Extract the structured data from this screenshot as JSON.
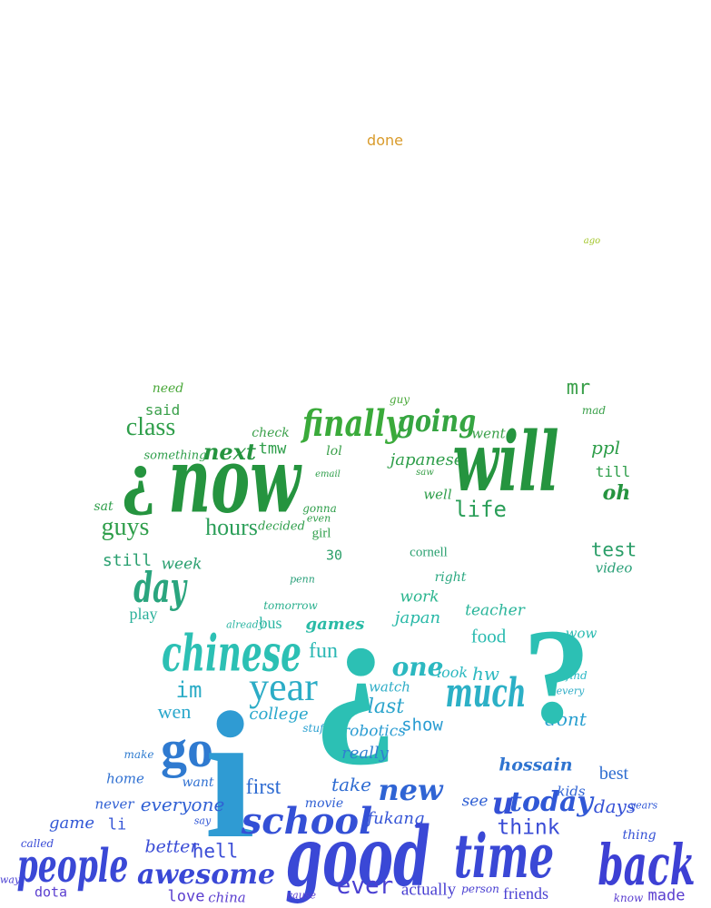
{
  "colors": {
    "orange": "#d99b2b",
    "lime": "#a3c62a",
    "green": "#2e9e4a",
    "green_dark": "#25943f",
    "teal_green": "#2aa58a",
    "teal": "#2cc0b4",
    "sky": "#2e9bd3",
    "blue": "#2f74d0",
    "indigo": "#3a48d6",
    "violet": "#5b3fd0"
  },
  "words": [
    "done",
    "ago",
    "need",
    "mr",
    "said",
    "guy",
    "mad",
    "class",
    "check",
    "finally",
    "going",
    "went",
    "ppl",
    "something",
    "next",
    "tmw",
    "lol",
    "japanese",
    "will",
    "till",
    "now",
    "saw",
    "well",
    "oh",
    "sat",
    "gonna",
    "even",
    "email",
    "guys",
    "hours",
    "decided",
    "girl",
    "life",
    "30",
    "test",
    "still",
    "week",
    "cornell",
    "video",
    "penn",
    "right",
    "day",
    "tomorrow",
    "work",
    "teacher",
    "play",
    "already",
    "bus",
    "games",
    "japan",
    "food",
    "wow",
    "chinese",
    "fun",
    "one",
    "much",
    "look",
    "hw",
    "find",
    "im",
    "year",
    "watch",
    "every",
    "wen",
    "college",
    "last",
    "dont",
    "stuff",
    "robotics",
    "show",
    "go",
    "really",
    "make",
    "hossain",
    "best",
    "home",
    "want",
    "first",
    "take",
    "new",
    "kids",
    "never",
    "everyone",
    "movie",
    "see",
    "today",
    "years",
    "game",
    "say",
    "fukang",
    "li",
    "school",
    "u",
    "days",
    "thing",
    "called",
    "better",
    "hell",
    "think",
    "people",
    "awesome",
    "good",
    "time",
    "back",
    "way",
    "ever",
    "actually",
    "person",
    "friends",
    "dota",
    "love",
    "china",
    "cause",
    "know",
    "made"
  ]
}
